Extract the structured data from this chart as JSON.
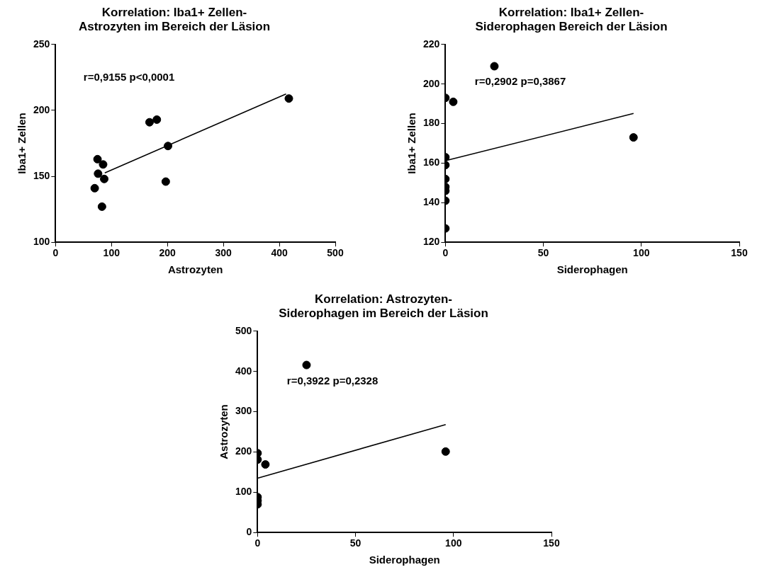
{
  "chart_data": [
    {
      "type": "scatter",
      "title": "Korrelation: Iba1+ Zellen-\nAstrozyten im Bereich der Läsion",
      "xlabel": "Astrozyten",
      "ylabel": "Iba1+ Zellen",
      "annotations": [
        "r=0,9155 p<0,0001"
      ],
      "marker": "circle",
      "xlim": [
        0,
        500
      ],
      "xticks": [
        0,
        100,
        200,
        300,
        400,
        500
      ],
      "ylim": [
        100,
        250
      ],
      "yticks": [
        100,
        150,
        200,
        250
      ],
      "series": [
        {
          "color": "#000000",
          "x": [
            70,
            75,
            76,
            85,
            87,
            83,
            168,
            181,
            197,
            201,
            417
          ],
          "values": [
            141,
            163,
            152,
            159,
            148,
            127,
            191,
            193,
            146,
            173,
            209
          ]
        },
        {
          "type": "line",
          "color": "#000000",
          "marker": "none",
          "x": [
            88,
            412
          ],
          "values": [
            152.6,
            212.4
          ]
        }
      ]
    },
    {
      "type": "scatter",
      "title": "Korrelation: Iba1+ Zellen-\nSiderophagen Bereich der Läsion",
      "xlabel": "Siderophagen",
      "ylabel": "Iba1+ Zellen",
      "annotations": [
        "r=0,2902 p=0,3867"
      ],
      "marker": "circle",
      "xlim": [
        0,
        150
      ],
      "xticks": [
        0,
        50,
        100,
        150
      ],
      "ylim": [
        120,
        220
      ],
      "yticks": [
        120,
        140,
        160,
        180,
        200,
        220
      ],
      "series": [
        {
          "color": "#000000",
          "x": [
            0,
            4,
            25,
            96,
            0,
            0,
            0,
            0,
            0,
            0,
            0
          ],
          "values": [
            193,
            191,
            209,
            173,
            163,
            159,
            152,
            148,
            146,
            141,
            127
          ]
        },
        {
          "type": "line",
          "color": "#000000",
          "marker": "none",
          "x": [
            0,
            96
          ],
          "values": [
            161.2,
            185.1
          ]
        }
      ]
    },
    {
      "type": "scatter",
      "title": "Korrelation: Astrozyten-\nSiderophagen im Bereich der Läsion",
      "xlabel": "Siderophagen",
      "ylabel": "Astrozyten",
      "annotations": [
        "r=0,3922 p=0,2328"
      ],
      "marker": "circle",
      "xlim": [
        0,
        150
      ],
      "xticks": [
        0,
        50,
        100,
        150
      ],
      "ylim": [
        0,
        500
      ],
      "yticks": [
        0,
        100,
        200,
        300,
        400,
        500
      ],
      "series": [
        {
          "color": "#000000",
          "x": [
            25,
            96,
            4,
            0,
            0,
            0,
            0,
            0
          ],
          "values": [
            416,
            201,
            169,
            197,
            181,
            88,
            79,
            70
          ]
        },
        {
          "type": "line",
          "color": "#000000",
          "marker": "none",
          "x": [
            0,
            96
          ],
          "values": [
            135,
            268
          ]
        }
      ]
    }
  ]
}
